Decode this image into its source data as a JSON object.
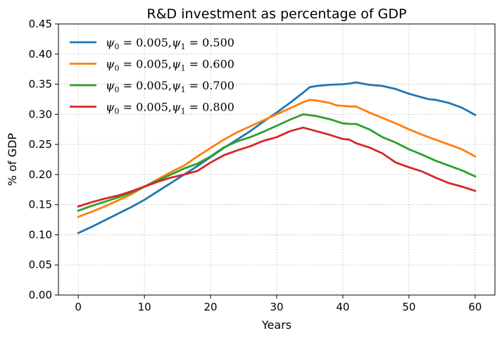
{
  "chart_data": {
    "type": "line",
    "title": "R&D investment as percentage of  GDP",
    "xlabel": "Years",
    "ylabel": "% of GDP",
    "xlim": [
      -3,
      63
    ],
    "ylim": [
      0,
      0.45
    ],
    "xticks": [
      0,
      10,
      20,
      30,
      40,
      50,
      60
    ],
    "yticks": [
      0.0,
      0.05,
      0.1,
      0.15,
      0.2,
      0.25,
      0.3,
      0.35,
      0.4,
      0.45
    ],
    "xtick_labels": [
      "0",
      "10",
      "20",
      "30",
      "40",
      "50",
      "60"
    ],
    "ytick_labels": [
      "0.00",
      "0.05",
      "0.10",
      "0.15",
      "0.20",
      "0.25",
      "0.30",
      "0.35",
      "0.40",
      "0.45"
    ],
    "grid": true,
    "legend_position": "top-left",
    "series": [
      {
        "name": "ψ0 = 0.005,ψ1 = 0.500",
        "color": "#1f77b4",
        "x": [
          0,
          2,
          4,
          6,
          8,
          10,
          12,
          14,
          16,
          18,
          20,
          22,
          24,
          26,
          28,
          30,
          32,
          34,
          35,
          36,
          38,
          40,
          41,
          42,
          43,
          44,
          46,
          48,
          50,
          52,
          53,
          54,
          56,
          58,
          60
        ],
        "y": [
          0.103,
          0.113,
          0.124,
          0.135,
          0.146,
          0.158,
          0.172,
          0.186,
          0.2,
          0.214,
          0.229,
          0.244,
          0.258,
          0.272,
          0.288,
          0.303,
          0.319,
          0.336,
          0.345,
          0.347,
          0.349,
          0.35,
          0.351,
          0.353,
          0.351,
          0.349,
          0.347,
          0.342,
          0.334,
          0.328,
          0.325,
          0.324,
          0.319,
          0.311,
          0.299
        ]
      },
      {
        "name": "ψ0 = 0.005,ψ1 = 0.600",
        "color": "#ff7f0e",
        "x": [
          0,
          2,
          4,
          6,
          8,
          10,
          12,
          14,
          16,
          18,
          20,
          22,
          24,
          26,
          28,
          30,
          32,
          34,
          35,
          36,
          38,
          39,
          40,
          41,
          42,
          44,
          46,
          48,
          50,
          52,
          54,
          56,
          58,
          60
        ],
        "y": [
          0.13,
          0.138,
          0.147,
          0.157,
          0.167,
          0.18,
          0.192,
          0.204,
          0.215,
          0.23,
          0.244,
          0.258,
          0.27,
          0.28,
          0.29,
          0.3,
          0.31,
          0.32,
          0.324,
          0.323,
          0.319,
          0.315,
          0.314,
          0.313,
          0.313,
          0.303,
          0.294,
          0.285,
          0.275,
          0.266,
          0.258,
          0.25,
          0.242,
          0.23
        ]
      },
      {
        "name": "ψ0 = 0.005,ψ1 = 0.700",
        "color": "#2ca02c",
        "x": [
          0,
          2,
          4,
          6,
          8,
          10,
          12,
          14,
          16,
          18,
          20,
          22,
          24,
          26,
          28,
          30,
          32,
          34,
          36,
          38,
          40,
          41,
          42,
          44,
          46,
          48,
          50,
          52,
          54,
          56,
          58,
          60
        ],
        "y": [
          0.14,
          0.148,
          0.155,
          0.162,
          0.17,
          0.18,
          0.19,
          0.2,
          0.21,
          0.218,
          0.23,
          0.245,
          0.255,
          0.262,
          0.271,
          0.281,
          0.291,
          0.3,
          0.297,
          0.292,
          0.285,
          0.284,
          0.284,
          0.275,
          0.262,
          0.253,
          0.242,
          0.233,
          0.223,
          0.215,
          0.207,
          0.197
        ]
      },
      {
        "name": "ψ0 = 0.005,ψ1 = 0.800",
        "color": "#d62728",
        "x": [
          0,
          2,
          4,
          6,
          8,
          10,
          12,
          14,
          16,
          18,
          20,
          22,
          24,
          26,
          28,
          30,
          32,
          34,
          36,
          38,
          40,
          41,
          42,
          44,
          46,
          48,
          50,
          52,
          54,
          56,
          58,
          60
        ],
        "y": [
          0.147,
          0.154,
          0.16,
          0.165,
          0.172,
          0.18,
          0.188,
          0.195,
          0.2,
          0.206,
          0.22,
          0.232,
          0.24,
          0.247,
          0.256,
          0.262,
          0.272,
          0.278,
          0.272,
          0.266,
          0.259,
          0.258,
          0.252,
          0.245,
          0.235,
          0.22,
          0.212,
          0.205,
          0.195,
          0.186,
          0.18,
          0.173
        ]
      }
    ]
  },
  "legend": [
    {
      "psi0_sym": "ψ",
      "psi0_sub": "0",
      "psi0_val": " = 0.005,",
      "psi1_sym": "ψ",
      "psi1_sub": "1",
      "psi1_val": " = 0.500"
    },
    {
      "psi0_sym": "ψ",
      "psi0_sub": "0",
      "psi0_val": " = 0.005,",
      "psi1_sym": "ψ",
      "psi1_sub": "1",
      "psi1_val": " = 0.600"
    },
    {
      "psi0_sym": "ψ",
      "psi0_sub": "0",
      "psi0_val": " = 0.005,",
      "psi1_sym": "ψ",
      "psi1_sub": "1",
      "psi1_val": " = 0.700"
    },
    {
      "psi0_sym": "ψ",
      "psi0_sub": "0",
      "psi0_val": " = 0.005,",
      "psi1_sym": "ψ",
      "psi1_sub": "1",
      "psi1_val": " = 0.800"
    }
  ]
}
